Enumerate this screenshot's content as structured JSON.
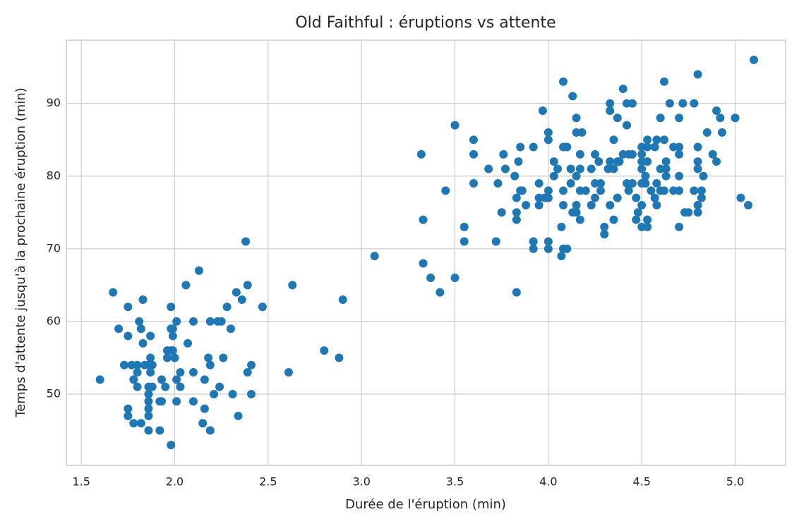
{
  "chart_data": {
    "type": "scatter",
    "title": "Old Faithful : éruptions vs attente",
    "x_label": "Durée de l'éruption (min)",
    "y_label": "Temps d'attente jusqu'à la prochaine éruption (min)",
    "color": "#1f77b4",
    "grid": true,
    "xlim": [
      1.42,
      5.27
    ],
    "ylim": [
      40.2,
      98.7
    ],
    "xticks": [
      1.5,
      {
        "value": 2,
        "label": "2.0"
      },
      2.5,
      {
        "value": 3,
        "label": "3.0"
      },
      3.5,
      {
        "value": 4,
        "label": "4.0"
      },
      4.5,
      {
        "value": 5,
        "label": "5.0"
      }
    ],
    "yticks": [
      50,
      60,
      70,
      80,
      90
    ],
    "x": [
      1.6,
      1.67,
      1.7,
      1.73,
      1.75,
      1.75,
      1.75,
      1.75,
      1.77,
      1.78,
      1.78,
      1.8,
      1.8,
      1.8,
      1.81,
      1.82,
      1.83,
      1.83,
      1.82,
      1.84,
      1.86,
      1.86,
      1.86,
      1.86,
      1.86,
      1.86,
      1.86,
      1.87,
      1.87,
      1.87,
      1.88,
      1.88,
      1.92,
      1.92,
      1.93,
      1.93,
      1.95,
      1.96,
      1.96,
      1.98,
      1.98,
      1.98,
      1.98,
      1.99,
      1.99,
      2.0,
      1.99,
      2.01,
      2.01,
      2.01,
      2.03,
      2.03,
      2.06,
      2.07,
      2.1,
      2.1,
      2.1,
      2.13,
      2.15,
      2.16,
      2.16,
      2.18,
      2.19,
      2.19,
      2.19,
      2.21,
      2.23,
      2.24,
      2.25,
      2.26,
      2.28,
      2.3,
      2.31,
      2.33,
      2.34,
      2.36,
      2.38,
      2.39,
      2.39,
      2.41,
      2.41,
      2.47,
      2.61,
      2.63,
      2.8,
      2.88,
      2.9,
      3.07,
      3.32,
      3.33,
      3.33,
      3.37,
      3.42,
      3.45,
      3.5,
      3.5,
      3.55,
      3.55,
      3.6,
      3.6,
      3.6,
      3.68,
      3.72,
      3.73,
      3.75,
      3.76,
      3.77,
      3.82,
      3.83,
      3.83,
      3.83,
      3.83,
      3.84,
      3.85,
      3.85,
      3.86,
      3.88,
      3.92,
      3.92,
      3.92,
      3.95,
      3.95,
      3.95,
      3.97,
      3.98,
      4.0,
      4.0,
      4.0,
      4.0,
      4.0,
      4.0,
      4.03,
      4.03,
      4.05,
      4.07,
      4.07,
      4.08,
      4.08,
      4.08,
      4.08,
      4.08,
      4.1,
      4.1,
      4.12,
      4.12,
      4.13,
      4.13,
      4.15,
      4.15,
      4.15,
      4.15,
      4.15,
      4.17,
      4.17,
      4.17,
      4.17,
      4.18,
      4.2,
      4.23,
      4.23,
      4.25,
      4.25,
      4.25,
      4.27,
      4.28,
      4.28,
      4.3,
      4.3,
      4.32,
      4.33,
      4.33,
      4.33,
      4.33,
      4.35,
      4.35,
      4.35,
      4.37,
      4.37,
      4.37,
      4.38,
      4.4,
      4.4,
      4.42,
      4.42,
      4.42,
      4.43,
      4.43,
      4.45,
      4.45,
      4.45,
      4.47,
      4.47,
      4.48,
      4.5,
      4.5,
      4.5,
      4.5,
      4.5,
      4.5,
      4.5,
      4.52,
      4.52,
      4.53,
      4.53,
      4.53,
      4.53,
      4.53,
      4.55,
      4.57,
      4.57,
      4.58,
      4.58,
      4.58,
      4.6,
      4.6,
      4.6,
      4.62,
      4.62,
      4.62,
      4.63,
      4.63,
      4.63,
      4.65,
      4.67,
      4.67,
      4.7,
      4.7,
      4.7,
      4.7,
      4.7,
      4.7,
      4.72,
      4.73,
      4.75,
      4.78,
      4.78,
      4.8,
      4.8,
      4.8,
      4.8,
      4.8,
      4.8,
      4.82,
      4.82,
      4.83,
      4.85,
      4.88,
      4.9,
      4.9,
      4.92,
      4.93,
      5.0,
      5.03,
      5.07,
      5.1
    ],
    "values": [
      52,
      64,
      59,
      54,
      62,
      58,
      48,
      47,
      54,
      52,
      46,
      54,
      51,
      53,
      60,
      59,
      63,
      57,
      46,
      54,
      54,
      48,
      47,
      49,
      50,
      51,
      45,
      53,
      58,
      55,
      54,
      51,
      45,
      49,
      52,
      49,
      51,
      56,
      55,
      62,
      59,
      56,
      43,
      56,
      59,
      55,
      58,
      60,
      52,
      49,
      53,
      51,
      65,
      57,
      60,
      53,
      49,
      67,
      46,
      52,
      48,
      55,
      54,
      60,
      45,
      50,
      60,
      51,
      60,
      55,
      62,
      59,
      50,
      64,
      47,
      63,
      71,
      65,
      53,
      54,
      50,
      62,
      53,
      65,
      56,
      55,
      63,
      69,
      83,
      74,
      68,
      66,
      64,
      78,
      87,
      66,
      73,
      71,
      85,
      83,
      79,
      81,
      71,
      79,
      75,
      83,
      81,
      80,
      77,
      75,
      74,
      64,
      82,
      78,
      84,
      78,
      76,
      84,
      71,
      70,
      79,
      77,
      76,
      89,
      77,
      86,
      85,
      78,
      77,
      71,
      70,
      82,
      80,
      81,
      73,
      69,
      93,
      84,
      78,
      76,
      70,
      84,
      70,
      81,
      79,
      91,
      75,
      88,
      86,
      80,
      76,
      75,
      83,
      81,
      78,
      74,
      86,
      78,
      81,
      76,
      83,
      79,
      77,
      82,
      79,
      78,
      73,
      72,
      81,
      90,
      89,
      82,
      76,
      85,
      81,
      74,
      88,
      82,
      77,
      82,
      92,
      83,
      90,
      87,
      79,
      83,
      78,
      90,
      83,
      79,
      77,
      74,
      75,
      84,
      83,
      82,
      81,
      79,
      76,
      73,
      80,
      79,
      85,
      84,
      82,
      74,
      73,
      78,
      84,
      77,
      85,
      79,
      76,
      88,
      81,
      78,
      93,
      85,
      78,
      82,
      81,
      80,
      90,
      84,
      78,
      88,
      84,
      83,
      80,
      78,
      73,
      90,
      75,
      75,
      90,
      78,
      94,
      84,
      82,
      81,
      76,
      75,
      78,
      77,
      80,
      86,
      83,
      89,
      82,
      88,
      86,
      88,
      77,
      76,
      96
    ]
  }
}
